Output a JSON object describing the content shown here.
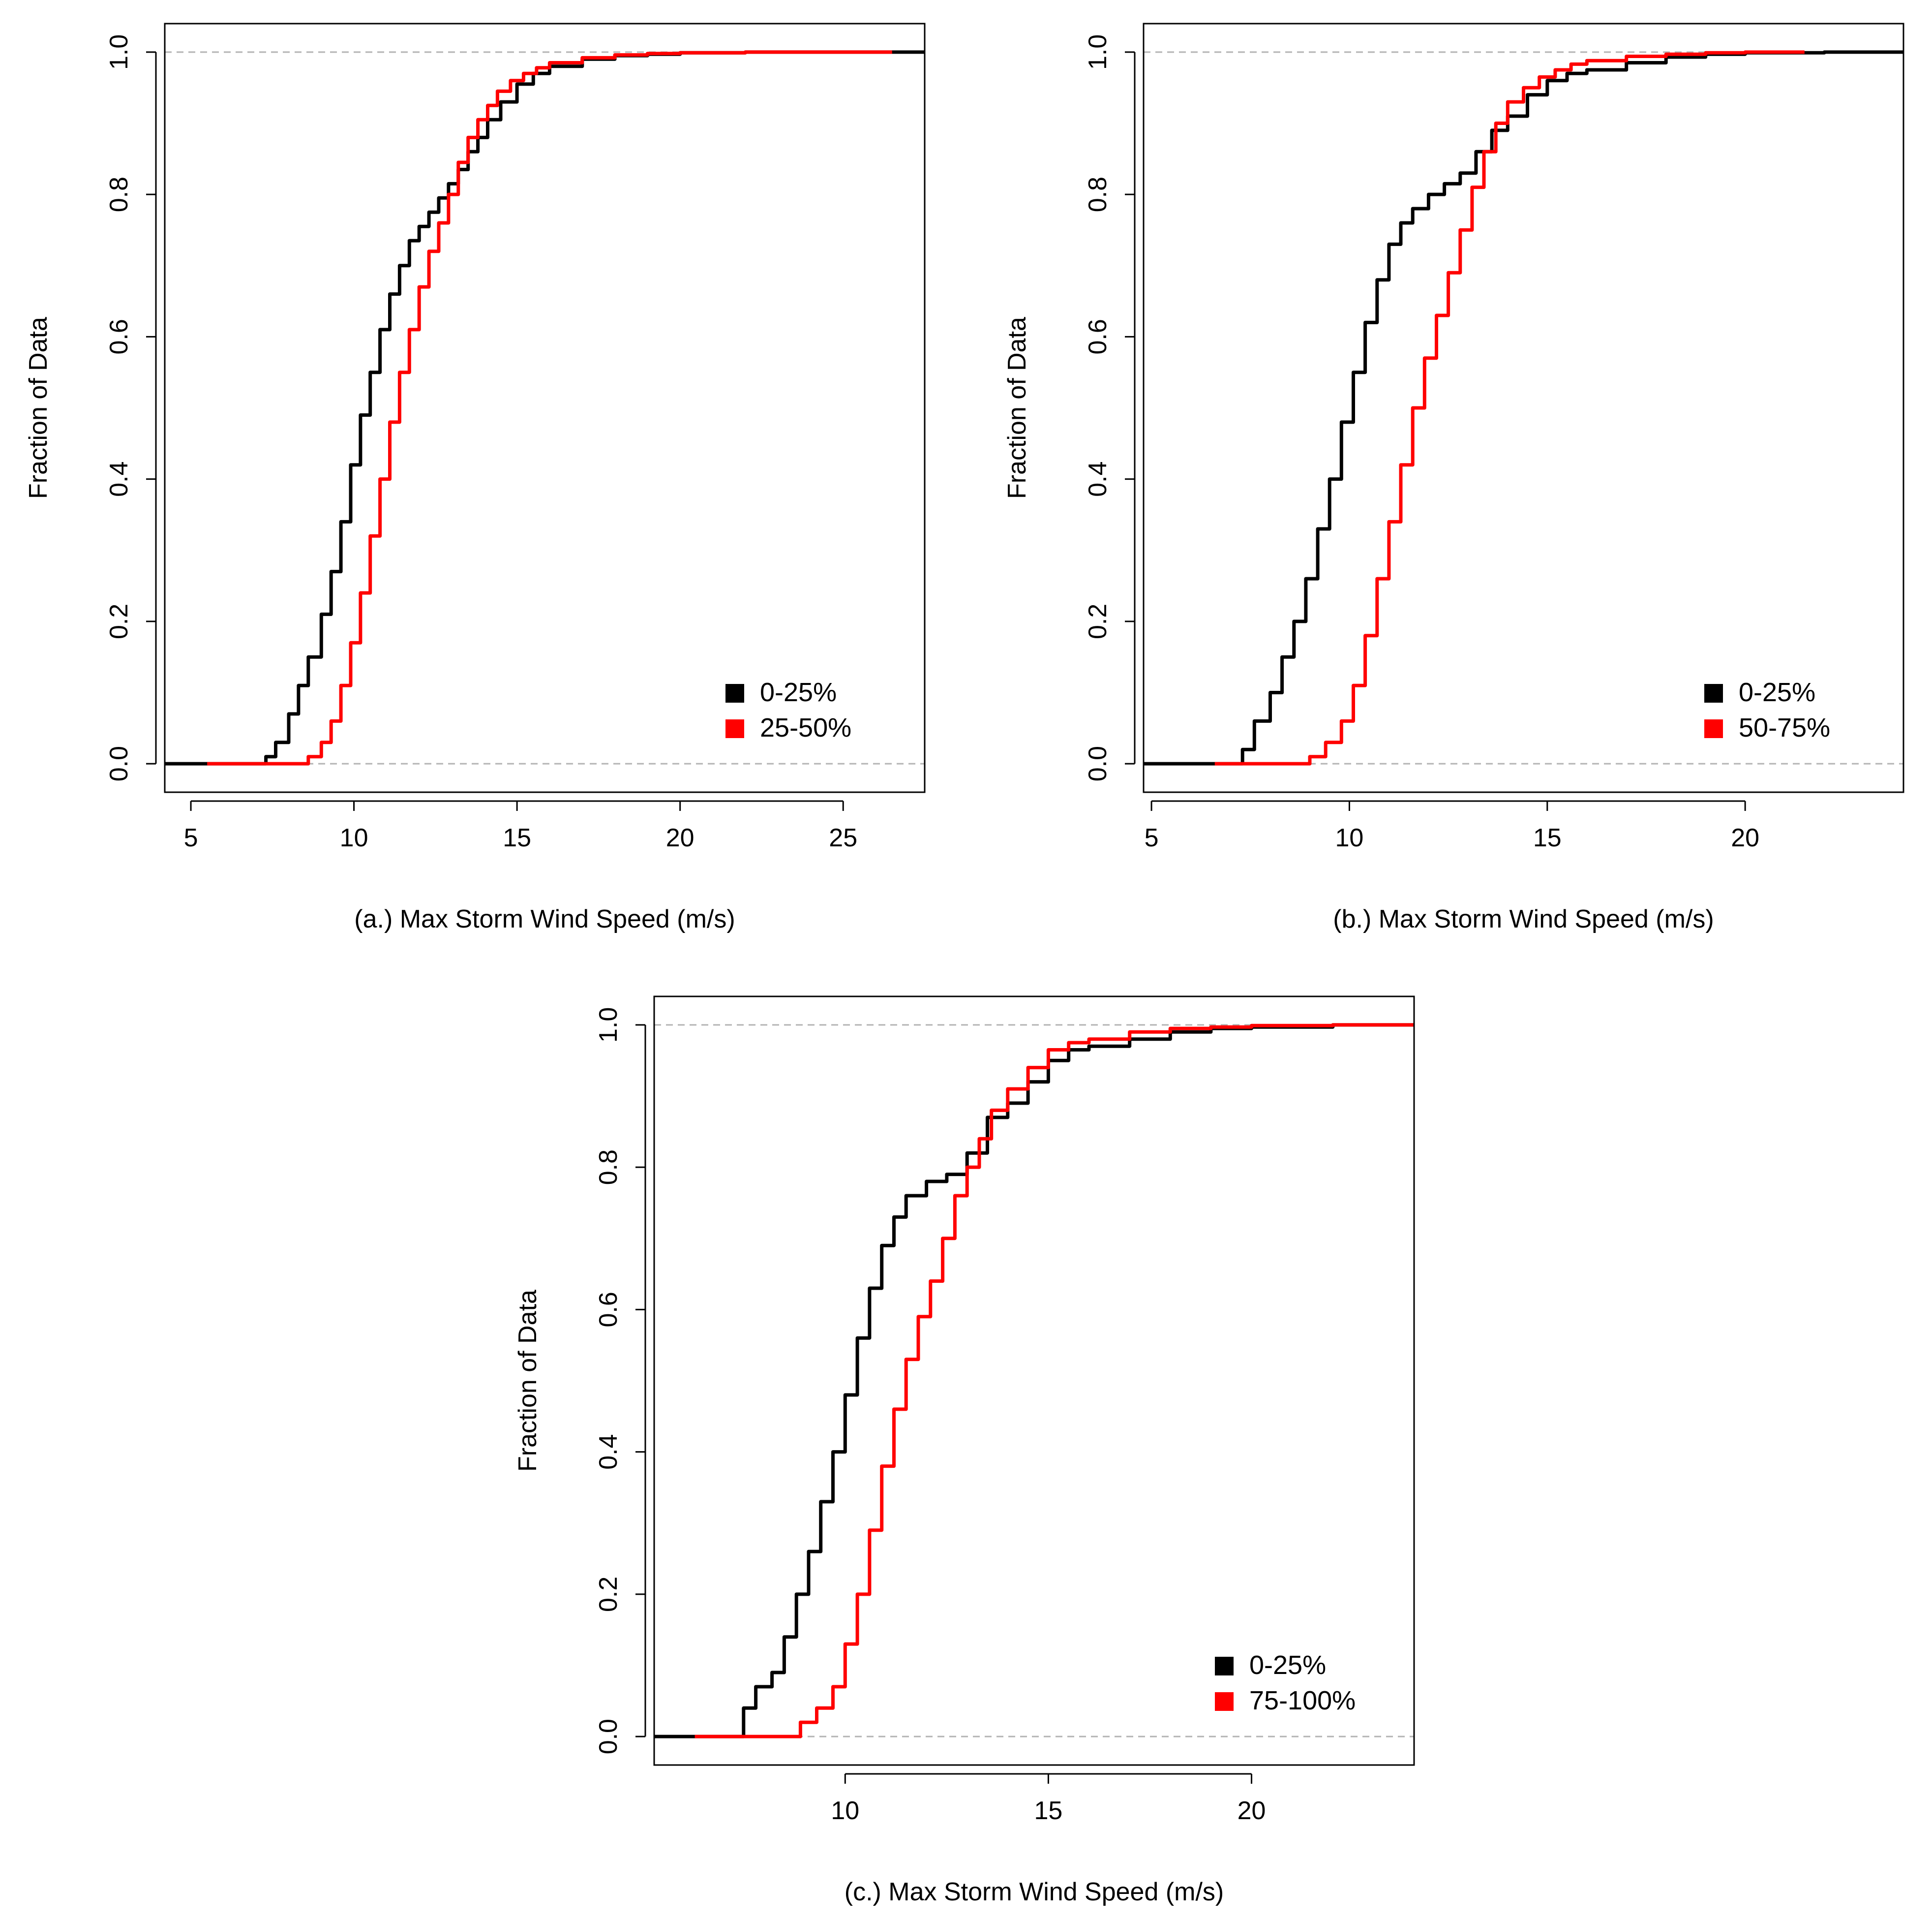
{
  "figure": {
    "description_panels": [
      "a",
      "b",
      "c"
    ]
  },
  "colors": {
    "series_black": "#000000",
    "series_red": "#ff0000",
    "reference_line": "#b4b4b4",
    "frame": "#000000"
  },
  "chart_data": [
    {
      "panel": "a",
      "type": "line",
      "title": "",
      "xlabel": "(a.)  Max Storm Wind Speed (m/s)",
      "ylabel": "Fraction of Data",
      "xlim": [
        4.2,
        27.5
      ],
      "ylim": [
        -0.04,
        1.04
      ],
      "xticks": [
        5,
        10,
        15,
        20,
        25
      ],
      "yticks": [
        0.0,
        0.2,
        0.4,
        0.6,
        0.8,
        1.0
      ],
      "xtick_labels": [
        "5",
        "10",
        "15",
        "20",
        "25"
      ],
      "ytick_labels": [
        "0.0",
        "0.2",
        "0.4",
        "0.6",
        "0.8",
        "1.0"
      ],
      "reference_lines": [
        0.0,
        1.0
      ],
      "legend_position": "bottom-right",
      "series": [
        {
          "name": "0-25%",
          "color": "#000000",
          "x": [
            4.2,
            7.0,
            7.3,
            7.6,
            8.0,
            8.3,
            8.6,
            9.0,
            9.3,
            9.6,
            9.9,
            10.2,
            10.5,
            10.8,
            11.1,
            11.4,
            11.7,
            12.0,
            12.3,
            12.6,
            12.9,
            13.2,
            13.5,
            13.8,
            14.1,
            14.5,
            15.0,
            15.5,
            16.0,
            17.0,
            18.0,
            19.0,
            20.0,
            22.0,
            25.0,
            27.5
          ],
          "y": [
            0.0,
            0.0,
            0.01,
            0.03,
            0.07,
            0.11,
            0.15,
            0.21,
            0.27,
            0.34,
            0.42,
            0.49,
            0.55,
            0.61,
            0.66,
            0.7,
            0.735,
            0.755,
            0.775,
            0.795,
            0.815,
            0.835,
            0.86,
            0.88,
            0.905,
            0.93,
            0.955,
            0.97,
            0.98,
            0.99,
            0.995,
            0.997,
            0.999,
            1.0,
            1.0,
            1.0
          ]
        },
        {
          "name": "25-50%",
          "color": "#ff0000",
          "x": [
            5.5,
            8.2,
            8.6,
            9.0,
            9.3,
            9.6,
            9.9,
            10.2,
            10.5,
            10.8,
            11.1,
            11.4,
            11.7,
            12.0,
            12.3,
            12.6,
            12.9,
            13.2,
            13.5,
            13.8,
            14.1,
            14.4,
            14.8,
            15.2,
            15.6,
            16.0,
            17.0,
            18.0,
            19.0,
            20.0,
            22.0,
            26.5
          ],
          "y": [
            0.0,
            0.0,
            0.01,
            0.03,
            0.06,
            0.11,
            0.17,
            0.24,
            0.32,
            0.4,
            0.48,
            0.55,
            0.61,
            0.67,
            0.72,
            0.76,
            0.8,
            0.845,
            0.88,
            0.905,
            0.925,
            0.945,
            0.96,
            0.97,
            0.978,
            0.985,
            0.992,
            0.996,
            0.998,
            0.999,
            1.0,
            1.0
          ]
        }
      ]
    },
    {
      "panel": "b",
      "type": "line",
      "title": "",
      "xlabel": "(b.) Max Storm Wind Speed (m/s)",
      "ylabel": "Fraction of Data",
      "xlim": [
        4.8,
        24.0
      ],
      "ylim": [
        -0.04,
        1.04
      ],
      "xticks": [
        5,
        10,
        15,
        20
      ],
      "yticks": [
        0.0,
        0.2,
        0.4,
        0.6,
        0.8,
        1.0
      ],
      "xtick_labels": [
        "5",
        "10",
        "15",
        "20"
      ],
      "ytick_labels": [
        "0.0",
        "0.2",
        "0.4",
        "0.6",
        "0.8",
        "1.0"
      ],
      "reference_lines": [
        0.0,
        1.0
      ],
      "legend_position": "bottom-right",
      "series": [
        {
          "name": "0-25%",
          "color": "#000000",
          "x": [
            4.8,
            7.0,
            7.3,
            7.6,
            8.0,
            8.3,
            8.6,
            8.9,
            9.2,
            9.5,
            9.8,
            10.1,
            10.4,
            10.7,
            11.0,
            11.3,
            11.6,
            12.0,
            12.4,
            12.8,
            13.2,
            13.6,
            14.0,
            14.5,
            15.0,
            15.5,
            16.0,
            17.0,
            18.0,
            19.0,
            20.0,
            22.0,
            24.0
          ],
          "y": [
            0.0,
            0.0,
            0.02,
            0.06,
            0.1,
            0.15,
            0.2,
            0.26,
            0.33,
            0.4,
            0.48,
            0.55,
            0.62,
            0.68,
            0.73,
            0.76,
            0.78,
            0.8,
            0.815,
            0.83,
            0.86,
            0.89,
            0.91,
            0.94,
            0.96,
            0.97,
            0.975,
            0.985,
            0.993,
            0.997,
            0.999,
            1.0,
            1.0
          ]
        },
        {
          "name": "50-75%",
          "color": "#ff0000",
          "x": [
            6.6,
            8.5,
            9.0,
            9.4,
            9.8,
            10.1,
            10.4,
            10.7,
            11.0,
            11.3,
            11.6,
            11.9,
            12.2,
            12.5,
            12.8,
            13.1,
            13.4,
            13.7,
            14.0,
            14.4,
            14.8,
            15.2,
            15.6,
            16.0,
            17.0,
            18.0,
            19.0,
            20.0,
            21.5
          ],
          "y": [
            0.0,
            0.0,
            0.01,
            0.03,
            0.06,
            0.11,
            0.18,
            0.26,
            0.34,
            0.42,
            0.5,
            0.57,
            0.63,
            0.69,
            0.75,
            0.81,
            0.86,
            0.9,
            0.93,
            0.95,
            0.965,
            0.975,
            0.983,
            0.988,
            0.994,
            0.997,
            0.999,
            1.0,
            1.0
          ]
        }
      ]
    },
    {
      "panel": "c",
      "type": "line",
      "title": "",
      "xlabel": "(c.) Max Storm Wind Speed (m/s)",
      "ylabel": "Fraction of Data",
      "xlim": [
        5.3,
        24.0
      ],
      "ylim": [
        -0.04,
        1.04
      ],
      "xticks": [
        10,
        15,
        20
      ],
      "yticks": [
        0.0,
        0.2,
        0.4,
        0.6,
        0.8,
        1.0
      ],
      "xtick_labels": [
        "10",
        "15",
        "20"
      ],
      "ytick_labels": [
        "0.0",
        "0.2",
        "0.4",
        "0.6",
        "0.8",
        "1.0"
      ],
      "reference_lines": [
        0.0,
        1.0
      ],
      "legend_position": "bottom-right",
      "series": [
        {
          "name": "0-25%",
          "color": "#000000",
          "x": [
            5.3,
            7.2,
            7.5,
            7.8,
            8.2,
            8.5,
            8.8,
            9.1,
            9.4,
            9.7,
            10.0,
            10.3,
            10.6,
            10.9,
            11.2,
            11.5,
            12.0,
            12.5,
            13.0,
            13.5,
            14.0,
            14.5,
            15.0,
            15.5,
            16.0,
            17.0,
            18.0,
            19.0,
            20.0,
            22.0,
            24.0
          ],
          "y": [
            0.0,
            0.0,
            0.04,
            0.07,
            0.09,
            0.14,
            0.2,
            0.26,
            0.33,
            0.4,
            0.48,
            0.56,
            0.63,
            0.69,
            0.73,
            0.76,
            0.78,
            0.79,
            0.82,
            0.87,
            0.89,
            0.92,
            0.95,
            0.965,
            0.97,
            0.98,
            0.99,
            0.995,
            0.997,
            1.0,
            1.0
          ]
        },
        {
          "name": "75-100%",
          "color": "#ff0000",
          "x": [
            6.3,
            8.5,
            8.9,
            9.3,
            9.7,
            10.0,
            10.3,
            10.6,
            10.9,
            11.2,
            11.5,
            11.8,
            12.1,
            12.4,
            12.7,
            13.0,
            13.3,
            13.6,
            14.0,
            14.5,
            15.0,
            15.5,
            16.0,
            17.0,
            18.0,
            19.0,
            20.0,
            22.0,
            24.0
          ],
          "y": [
            0.0,
            0.0,
            0.02,
            0.04,
            0.07,
            0.13,
            0.2,
            0.29,
            0.38,
            0.46,
            0.53,
            0.59,
            0.64,
            0.7,
            0.76,
            0.8,
            0.84,
            0.88,
            0.91,
            0.94,
            0.965,
            0.975,
            0.98,
            0.99,
            0.995,
            0.997,
            0.999,
            1.0,
            1.0
          ]
        }
      ]
    }
  ]
}
